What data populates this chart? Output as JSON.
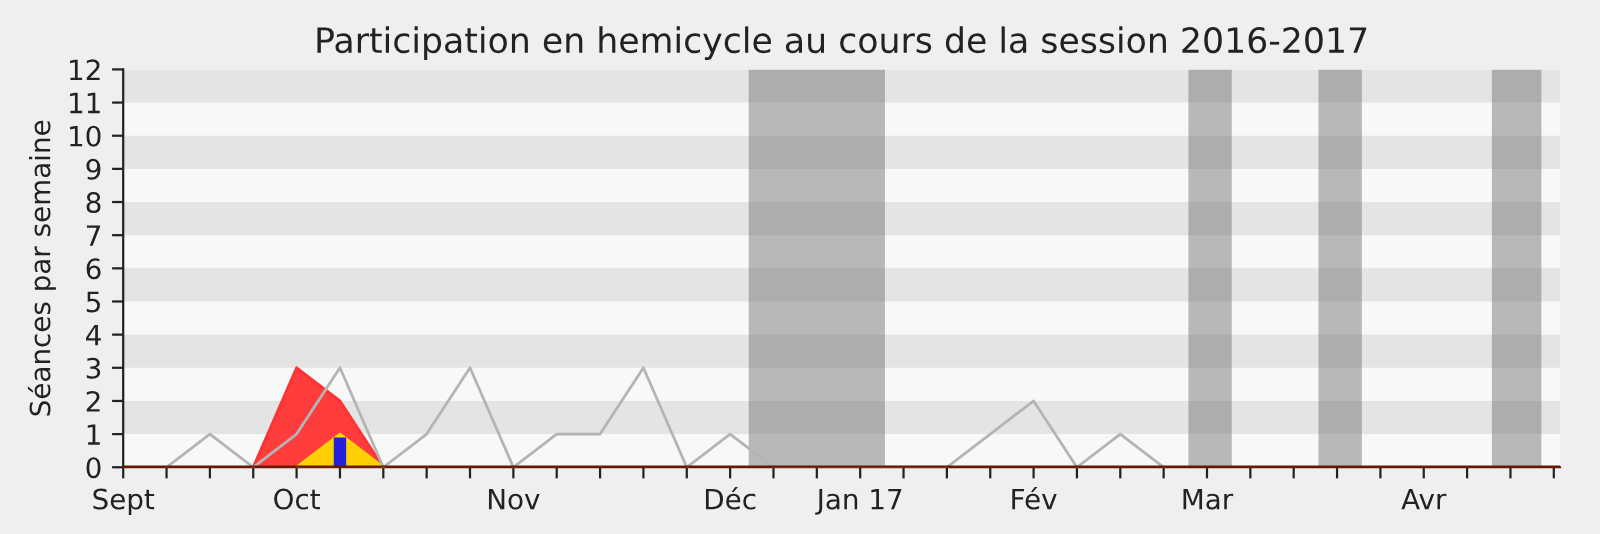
{
  "chart_data": {
    "type": "line",
    "title": "Participation en hemicycle au cours de la session 2016-2017",
    "ylabel": "Séances par semaine",
    "xlim": [
      "2016-09-07",
      "2017-04-27"
    ],
    "ylim": [
      0,
      12
    ],
    "yticks": [
      0,
      1,
      2,
      3,
      4,
      5,
      6,
      7,
      8,
      9,
      10,
      11,
      12
    ],
    "xticks": [
      {
        "value": "2016-09-07",
        "label": "Sept"
      },
      {
        "value": "2016-09-14",
        "label": null
      },
      {
        "value": "2016-09-21",
        "label": null
      },
      {
        "value": "2016-09-28",
        "label": null
      },
      {
        "value": "2016-10-05",
        "label": "Oct"
      },
      {
        "value": "2016-10-12",
        "label": null
      },
      {
        "value": "2016-10-19",
        "label": null
      },
      {
        "value": "2016-10-26",
        "label": null
      },
      {
        "value": "2016-11-02",
        "label": null
      },
      {
        "value": "2016-11-09",
        "label": "Nov"
      },
      {
        "value": "2016-11-16",
        "label": null
      },
      {
        "value": "2016-11-23",
        "label": null
      },
      {
        "value": "2016-11-30",
        "label": null
      },
      {
        "value": "2016-12-07",
        "label": null
      },
      {
        "value": "2016-12-14",
        "label": "Déc"
      },
      {
        "value": "2016-12-21",
        "label": null
      },
      {
        "value": "2016-12-28",
        "label": null
      },
      {
        "value": "2017-01-04",
        "label": "Jan 17"
      },
      {
        "value": "2017-01-11",
        "label": null
      },
      {
        "value": "2017-01-18",
        "label": null
      },
      {
        "value": "2017-01-25",
        "label": null
      },
      {
        "value": "2017-02-01",
        "label": "Fév"
      },
      {
        "value": "2017-02-08",
        "label": null
      },
      {
        "value": "2017-02-15",
        "label": null
      },
      {
        "value": "2017-02-22",
        "label": null
      },
      {
        "value": "2017-03-01",
        "label": "Mar"
      },
      {
        "value": "2017-03-08",
        "label": null
      },
      {
        "value": "2017-03-15",
        "label": null
      },
      {
        "value": "2017-03-22",
        "label": null
      },
      {
        "value": "2017-03-29",
        "label": null
      },
      {
        "value": "2017-04-05",
        "label": "Avr"
      },
      {
        "value": "2017-04-12",
        "label": null
      },
      {
        "value": "2017-04-19",
        "label": null
      },
      {
        "value": "2017-04-26",
        "label": null
      }
    ],
    "bands": [
      {
        "axis": "x",
        "from": "2016-12-17",
        "to": "2017-01-08",
        "color": "#6a6a6a"
      },
      {
        "axis": "x",
        "from": "2017-02-26",
        "to": "2017-03-05",
        "color": "#6a6a6a"
      },
      {
        "axis": "x",
        "from": "2017-03-19",
        "to": "2017-03-26",
        "color": "#6a6a6a"
      },
      {
        "axis": "x",
        "from": "2017-04-16",
        "to": "2017-04-24",
        "color": "#6a6a6a"
      }
    ],
    "series": [
      {
        "type": "area",
        "color": "#ff3333",
        "x": [
          "2016-09-28",
          "2016-10-05",
          "2016-10-12",
          "2016-10-19"
        ],
        "values": [
          0,
          3,
          2,
          0
        ]
      },
      {
        "type": "area",
        "color": "#ffd700",
        "x": [
          "2016-10-05",
          "2016-10-12",
          "2016-10-19"
        ],
        "values": [
          0,
          1,
          0
        ]
      },
      {
        "type": "bar",
        "color": "#2222dd",
        "x": [
          "2016-10-12"
        ],
        "values": [
          0.9
        ]
      },
      {
        "color": "#b4b4b4",
        "x": [
          "2016-09-14",
          "2016-09-21",
          "2016-09-28",
          "2016-10-05",
          "2016-10-12",
          "2016-10-19",
          "2016-10-26",
          "2016-11-02",
          "2016-11-09",
          "2016-11-16",
          "2016-11-23",
          "2016-11-30",
          "2016-12-07",
          "2016-12-14",
          "2016-12-21",
          "2016-12-28",
          "2017-01-04",
          "2017-01-11",
          "2017-01-18",
          "2017-01-25",
          "2017-02-01",
          "2017-02-08",
          "2017-02-15",
          "2017-02-22"
        ],
        "values": [
          0,
          1,
          0,
          1,
          3,
          0,
          1,
          3,
          0,
          1,
          1,
          3,
          0,
          1,
          0,
          0,
          0,
          0,
          0,
          1,
          2,
          0,
          1,
          0
        ]
      }
    ]
  }
}
